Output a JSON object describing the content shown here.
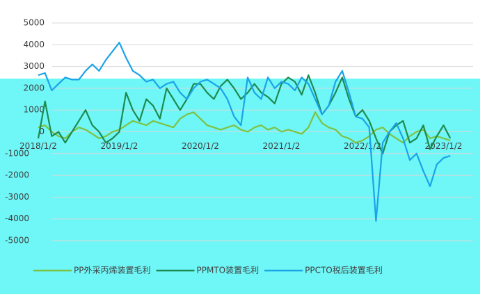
{
  "chart_data": {
    "type": "line",
    "categories": [
      "2018/1/2",
      null,
      null,
      null,
      null,
      null,
      null,
      null,
      null,
      null,
      null,
      null,
      "2019/1/2",
      null,
      null,
      null,
      null,
      null,
      null,
      null,
      null,
      null,
      null,
      null,
      "2020/1/2",
      null,
      null,
      null,
      null,
      null,
      null,
      null,
      null,
      null,
      null,
      null,
      "2021/1/2",
      null,
      null,
      null,
      null,
      null,
      null,
      null,
      null,
      null,
      null,
      null,
      "2022/1/2",
      null,
      null,
      null,
      null,
      null,
      null,
      null,
      null,
      null,
      null,
      null,
      "2023/1/2",
      null
    ],
    "series": [
      {
        "name": "PP外采丙烯装置毛利",
        "color": "#7dc242",
        "values": [
          200,
          300,
          0,
          -200,
          -300,
          0,
          200,
          100,
          -100,
          -300,
          -200,
          0,
          100,
          300,
          500,
          400,
          300,
          500,
          400,
          300,
          200,
          600,
          800,
          900,
          600,
          300,
          200,
          100,
          200,
          300,
          100,
          0,
          200,
          300,
          100,
          200,
          0,
          100,
          0,
          -100,
          200,
          900,
          400,
          200,
          100,
          -200,
          -300,
          -500,
          -400,
          -200,
          100,
          200,
          -100,
          -300,
          -500,
          -200,
          0,
          100,
          -300,
          -200,
          -300,
          -400
        ]
      },
      {
        "name": "PPMTO装置毛利",
        "color": "#1e8a50",
        "values": [
          -300,
          1400,
          -200,
          0,
          -500,
          0,
          500,
          1000,
          300,
          0,
          -500,
          -300,
          0,
          1800,
          1000,
          500,
          1500,
          1200,
          600,
          2000,
          1500,
          1000,
          1500,
          2200,
          2200,
          1800,
          1500,
          2100,
          2400,
          2000,
          1500,
          1800,
          2200,
          1800,
          1600,
          1300,
          2200,
          2500,
          2300,
          1700,
          2600,
          1800,
          800,
          1200,
          1800,
          2500,
          1500,
          700,
          1000,
          500,
          -300,
          -1000,
          0,
          300,
          500,
          -500,
          -300,
          300,
          -800,
          -200,
          300,
          -300
        ]
      },
      {
        "name": "PPCTO税后装置毛利",
        "color": "#1aa3e8",
        "values": [
          2600,
          2700,
          1900,
          2200,
          2500,
          2400,
          2400,
          2800,
          3100,
          2800,
          3300,
          3700,
          4100,
          3400,
          2800,
          2600,
          2300,
          2400,
          2000,
          2200,
          2300,
          1800,
          1500,
          2000,
          2300,
          2400,
          2200,
          2000,
          1500,
          700,
          300,
          2500,
          1800,
          1500,
          2500,
          2000,
          2300,
          2200,
          1900,
          2500,
          2200,
          1500,
          800,
          1200,
          2300,
          2800,
          1800,
          700,
          600,
          200,
          -4100,
          -500,
          0,
          400,
          -300,
          -1300,
          -1000,
          -1800,
          -2500,
          -1500,
          -1200,
          -1100
        ]
      }
    ],
    "ylim": [
      -5000,
      5000
    ],
    "yticks": [
      -5000,
      -4000,
      -3000,
      -2000,
      -1000,
      0,
      1000,
      2000,
      3000,
      4000,
      5000
    ],
    "grid": true
  }
}
